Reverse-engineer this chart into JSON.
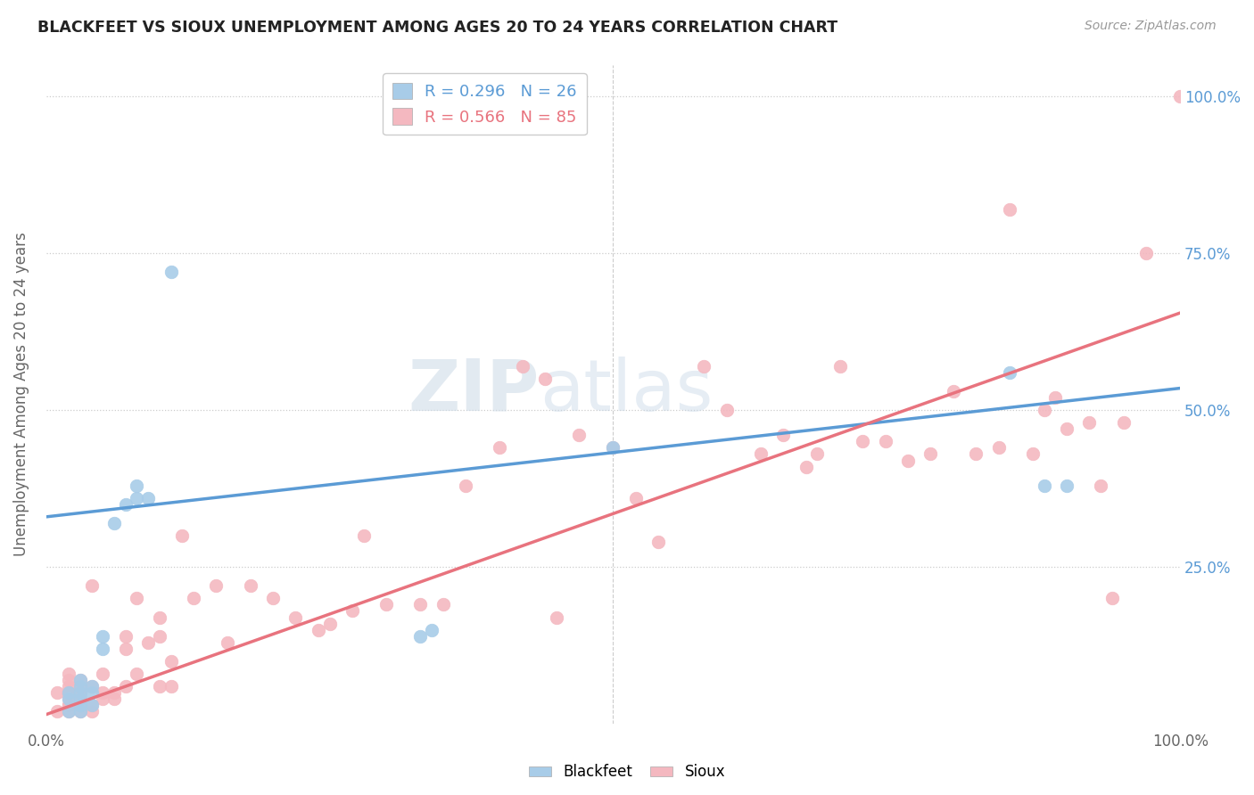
{
  "title": "BLACKFEET VS SIOUX UNEMPLOYMENT AMONG AGES 20 TO 24 YEARS CORRELATION CHART",
  "source": "Source: ZipAtlas.com",
  "ylabel": "Unemployment Among Ages 20 to 24 years",
  "xlim": [
    0.0,
    1.0
  ],
  "ylim": [
    0.0,
    1.05
  ],
  "grid_color": "#cccccc",
  "background_color": "#ffffff",
  "blackfeet_color": "#a8cce8",
  "sioux_color": "#f4b8c0",
  "blackfeet_line_color": "#5b9bd5",
  "sioux_line_color": "#e8737e",
  "blackfeet_R": "0.296",
  "blackfeet_N": "26",
  "sioux_R": "0.566",
  "sioux_N": "85",
  "watermark_zip": "ZIP",
  "watermark_atlas": "atlas",
  "blackfeet_line_y0": 0.33,
  "blackfeet_line_y1": 0.535,
  "sioux_line_y0": 0.015,
  "sioux_line_y1": 0.655,
  "blackfeet_x": [
    0.02,
    0.02,
    0.02,
    0.03,
    0.03,
    0.03,
    0.03,
    0.03,
    0.03,
    0.04,
    0.04,
    0.04,
    0.05,
    0.05,
    0.06,
    0.07,
    0.08,
    0.08,
    0.09,
    0.11,
    0.33,
    0.34,
    0.5,
    0.85,
    0.88,
    0.9
  ],
  "blackfeet_y": [
    0.02,
    0.04,
    0.05,
    0.02,
    0.03,
    0.04,
    0.05,
    0.06,
    0.07,
    0.03,
    0.05,
    0.06,
    0.12,
    0.14,
    0.32,
    0.35,
    0.36,
    0.38,
    0.36,
    0.72,
    0.14,
    0.15,
    0.44,
    0.56,
    0.38,
    0.38
  ],
  "sioux_x": [
    0.01,
    0.01,
    0.02,
    0.02,
    0.02,
    0.02,
    0.02,
    0.02,
    0.02,
    0.02,
    0.02,
    0.03,
    0.03,
    0.03,
    0.03,
    0.03,
    0.03,
    0.04,
    0.04,
    0.04,
    0.04,
    0.05,
    0.05,
    0.05,
    0.06,
    0.06,
    0.07,
    0.07,
    0.07,
    0.08,
    0.08,
    0.09,
    0.1,
    0.1,
    0.1,
    0.11,
    0.11,
    0.12,
    0.13,
    0.15,
    0.16,
    0.18,
    0.2,
    0.22,
    0.24,
    0.25,
    0.27,
    0.28,
    0.3,
    0.33,
    0.35,
    0.37,
    0.4,
    0.42,
    0.44,
    0.45,
    0.47,
    0.5,
    0.52,
    0.54,
    0.58,
    0.6,
    0.63,
    0.65,
    0.67,
    0.68,
    0.7,
    0.72,
    0.74,
    0.76,
    0.78,
    0.8,
    0.82,
    0.84,
    0.85,
    0.87,
    0.88,
    0.89,
    0.9,
    0.92,
    0.93,
    0.94,
    0.95,
    0.97,
    1.0
  ],
  "sioux_y": [
    0.02,
    0.05,
    0.02,
    0.03,
    0.03,
    0.04,
    0.05,
    0.05,
    0.06,
    0.07,
    0.08,
    0.02,
    0.03,
    0.04,
    0.05,
    0.06,
    0.07,
    0.02,
    0.03,
    0.06,
    0.22,
    0.04,
    0.05,
    0.08,
    0.04,
    0.05,
    0.06,
    0.12,
    0.14,
    0.08,
    0.2,
    0.13,
    0.06,
    0.14,
    0.17,
    0.06,
    0.1,
    0.3,
    0.2,
    0.22,
    0.13,
    0.22,
    0.2,
    0.17,
    0.15,
    0.16,
    0.18,
    0.3,
    0.19,
    0.19,
    0.19,
    0.38,
    0.44,
    0.57,
    0.55,
    0.17,
    0.46,
    0.44,
    0.36,
    0.29,
    0.57,
    0.5,
    0.43,
    0.46,
    0.41,
    0.43,
    0.57,
    0.45,
    0.45,
    0.42,
    0.43,
    0.53,
    0.43,
    0.44,
    0.82,
    0.43,
    0.5,
    0.52,
    0.47,
    0.48,
    0.38,
    0.2,
    0.48,
    0.75,
    1.0
  ],
  "right_tick_color": "#5b9bd5"
}
